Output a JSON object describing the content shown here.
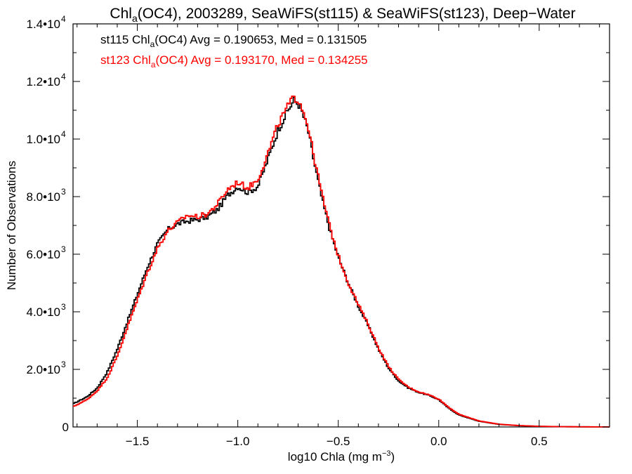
{
  "chart_data": {
    "type": "histogram",
    "title": {
      "part1": "Chl",
      "sub": "a",
      "part2": "(OC4), 2003289, SeaWiFS(st115) & SeaWiFS(st123), Deep−Water"
    },
    "xlabel": {
      "text": "log10 Chla (mg m",
      "sup": "−3",
      "close": ")"
    },
    "ylabel": "Number of Observations",
    "xlim": [
      -1.82,
      0.85
    ],
    "ylim": [
      0,
      14000
    ],
    "x_ticks": [
      {
        "value": -1.5,
        "label": "−1.5"
      },
      {
        "value": -1.0,
        "label": "−1.0"
      },
      {
        "value": -0.5,
        "label": "−0.5"
      },
      {
        "value": 0.0,
        "label": "0.0"
      },
      {
        "value": 0.5,
        "label": "0.5"
      }
    ],
    "y_ticks": [
      {
        "value": 0,
        "mantissa": "0",
        "exp": ""
      },
      {
        "value": 2000,
        "mantissa": "2.0•10",
        "exp": "3"
      },
      {
        "value": 4000,
        "mantissa": "4.0•10",
        "exp": "3"
      },
      {
        "value": 6000,
        "mantissa": "6.0•10",
        "exp": "3"
      },
      {
        "value": 8000,
        "mantissa": "8.0•10",
        "exp": "3"
      },
      {
        "value": 10000,
        "mantissa": "1.0•10",
        "exp": "4"
      },
      {
        "value": 12000,
        "mantissa": "1.2•10",
        "exp": "4"
      },
      {
        "value": 14000,
        "mantissa": "1.4•10",
        "exp": "4"
      }
    ],
    "grid": false,
    "annotations": [
      {
        "series": "st115",
        "color": "#000000",
        "pre": "st115 Chl",
        "sub": "a",
        "post": "(OC4) Avg = 0.190653, Med = 0.131505"
      },
      {
        "series": "st123",
        "color": "#ff0000",
        "pre": "st123 Chl",
        "sub": "a",
        "post": "(OC4) Avg = 0.193170, Med = 0.134255"
      }
    ],
    "series": [
      {
        "name": "st115",
        "color": "#000000",
        "points": [
          [
            -1.82,
            800
          ],
          [
            -1.75,
            1050
          ],
          [
            -1.7,
            1350
          ],
          [
            -1.65,
            1900
          ],
          [
            -1.6,
            2700
          ],
          [
            -1.55,
            3650
          ],
          [
            -1.5,
            4600
          ],
          [
            -1.45,
            5550
          ],
          [
            -1.4,
            6350
          ],
          [
            -1.35,
            6850
          ],
          [
            -1.3,
            7050
          ],
          [
            -1.25,
            7150
          ],
          [
            -1.2,
            7200
          ],
          [
            -1.15,
            7300
          ],
          [
            -1.1,
            7550
          ],
          [
            -1.05,
            8050
          ],
          [
            -1.0,
            8350
          ],
          [
            -0.95,
            8150
          ],
          [
            -0.9,
            8350
          ],
          [
            -0.85,
            9300
          ],
          [
            -0.8,
            10300
          ],
          [
            -0.75,
            11000
          ],
          [
            -0.72,
            11350
          ],
          [
            -0.69,
            11150
          ],
          [
            -0.65,
            10300
          ],
          [
            -0.62,
            9200
          ],
          [
            -0.58,
            7900
          ],
          [
            -0.54,
            6800
          ],
          [
            -0.5,
            5900
          ],
          [
            -0.45,
            5000
          ],
          [
            -0.4,
            4200
          ],
          [
            -0.35,
            3500
          ],
          [
            -0.3,
            2700
          ],
          [
            -0.25,
            2050
          ],
          [
            -0.2,
            1600
          ],
          [
            -0.15,
            1350
          ],
          [
            -0.1,
            1200
          ],
          [
            -0.05,
            1100
          ],
          [
            0.0,
            950
          ],
          [
            0.05,
            650
          ],
          [
            0.1,
            420
          ],
          [
            0.2,
            200
          ],
          [
            0.3,
            90
          ],
          [
            0.4,
            45
          ],
          [
            0.5,
            20
          ],
          [
            0.6,
            10
          ],
          [
            0.7,
            5
          ],
          [
            0.85,
            2
          ]
        ]
      },
      {
        "name": "st123",
        "color": "#ff0000",
        "points": [
          [
            -1.82,
            700
          ],
          [
            -1.75,
            950
          ],
          [
            -1.7,
            1250
          ],
          [
            -1.65,
            1700
          ],
          [
            -1.6,
            2450
          ],
          [
            -1.55,
            3450
          ],
          [
            -1.5,
            4400
          ],
          [
            -1.45,
            5350
          ],
          [
            -1.4,
            6200
          ],
          [
            -1.35,
            6800
          ],
          [
            -1.3,
            7100
          ],
          [
            -1.25,
            7350
          ],
          [
            -1.2,
            7300
          ],
          [
            -1.15,
            7400
          ],
          [
            -1.1,
            7750
          ],
          [
            -1.05,
            8250
          ],
          [
            -1.0,
            8500
          ],
          [
            -0.95,
            8300
          ],
          [
            -0.9,
            8600
          ],
          [
            -0.85,
            9500
          ],
          [
            -0.8,
            10500
          ],
          [
            -0.75,
            11150
          ],
          [
            -0.72,
            11450
          ],
          [
            -0.69,
            11300
          ],
          [
            -0.65,
            10450
          ],
          [
            -0.62,
            9350
          ],
          [
            -0.58,
            8050
          ],
          [
            -0.54,
            6900
          ],
          [
            -0.5,
            5950
          ],
          [
            -0.45,
            5000
          ],
          [
            -0.4,
            4250
          ],
          [
            -0.35,
            3550
          ],
          [
            -0.3,
            2750
          ],
          [
            -0.25,
            2100
          ],
          [
            -0.2,
            1650
          ],
          [
            -0.15,
            1380
          ],
          [
            -0.1,
            1220
          ],
          [
            -0.05,
            1120
          ],
          [
            0.0,
            970
          ],
          [
            0.05,
            680
          ],
          [
            0.1,
            440
          ],
          [
            0.2,
            210
          ],
          [
            0.3,
            95
          ],
          [
            0.4,
            48
          ],
          [
            0.5,
            22
          ],
          [
            0.6,
            11
          ],
          [
            0.7,
            6
          ],
          [
            0.85,
            2
          ]
        ]
      }
    ]
  }
}
